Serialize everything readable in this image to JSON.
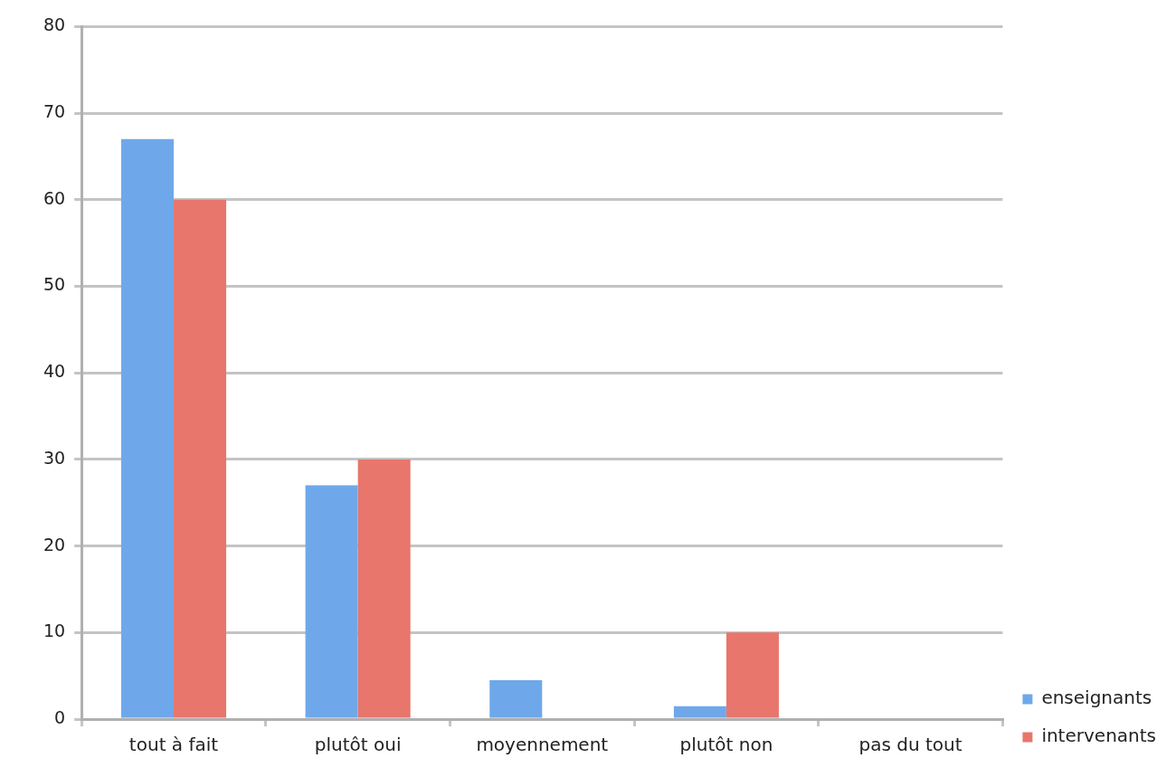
{
  "chart_data": {
    "type": "bar",
    "categories": [
      "tout à fait",
      "plutôt oui",
      "moyennement",
      "plutôt non",
      "pas du tout"
    ],
    "series": [
      {
        "name": "enseignants",
        "color": "#6fa8ea",
        "values": [
          67,
          27,
          4.5,
          1.5,
          0
        ]
      },
      {
        "name": "intervenants",
        "color": "#e8766c",
        "values": [
          60,
          30,
          0,
          10,
          0
        ]
      }
    ],
    "ylim": [
      0,
      80
    ],
    "yticks": [
      0,
      10,
      20,
      30,
      40,
      50,
      60,
      70,
      80
    ],
    "grid": "y",
    "legend": "bottom right"
  }
}
